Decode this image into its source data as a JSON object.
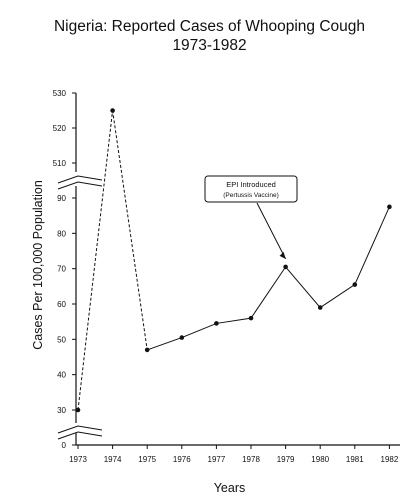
{
  "chart_data": {
    "type": "line",
    "title": "Nigeria: Reported Cases of Whooping Cough",
    "subtitle": "1973-1982",
    "xlabel": "Years",
    "ylabel": "Cases Per 100,000 Population",
    "x": [
      "1973",
      "1974",
      "1975",
      "1976",
      "1977",
      "1978",
      "1979",
      "1980",
      "1981",
      "1982"
    ],
    "values": [
      30,
      525,
      47,
      50.5,
      54.5,
      56,
      70.5,
      59,
      65.5,
      87.5
    ],
    "y_ticks_lower": [
      "0",
      "30",
      "40",
      "50",
      "60",
      "70",
      "80",
      "90"
    ],
    "y_ticks_upper": [
      "510",
      "520",
      "530"
    ],
    "ylim_lower": [
      0,
      90
    ],
    "ylim_upper": [
      510,
      530
    ],
    "axis_break": true,
    "grid": false,
    "annotation": {
      "line1": "EPI Introduced",
      "line2": "(Pertussis Vaccine)",
      "points_to": "1979"
    }
  }
}
